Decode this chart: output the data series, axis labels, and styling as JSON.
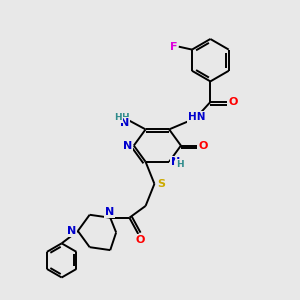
{
  "background_color": "#e8e8e8",
  "atom_colors": {
    "N": "#0000cd",
    "O": "#ff0000",
    "S": "#ccaa00",
    "F": "#dd00dd",
    "C": "#000000",
    "H": "#2e8b8b"
  },
  "bond_color": "#000000",
  "bond_width": 1.4,
  "figsize": [
    3.0,
    3.0
  ],
  "dpi": 100
}
